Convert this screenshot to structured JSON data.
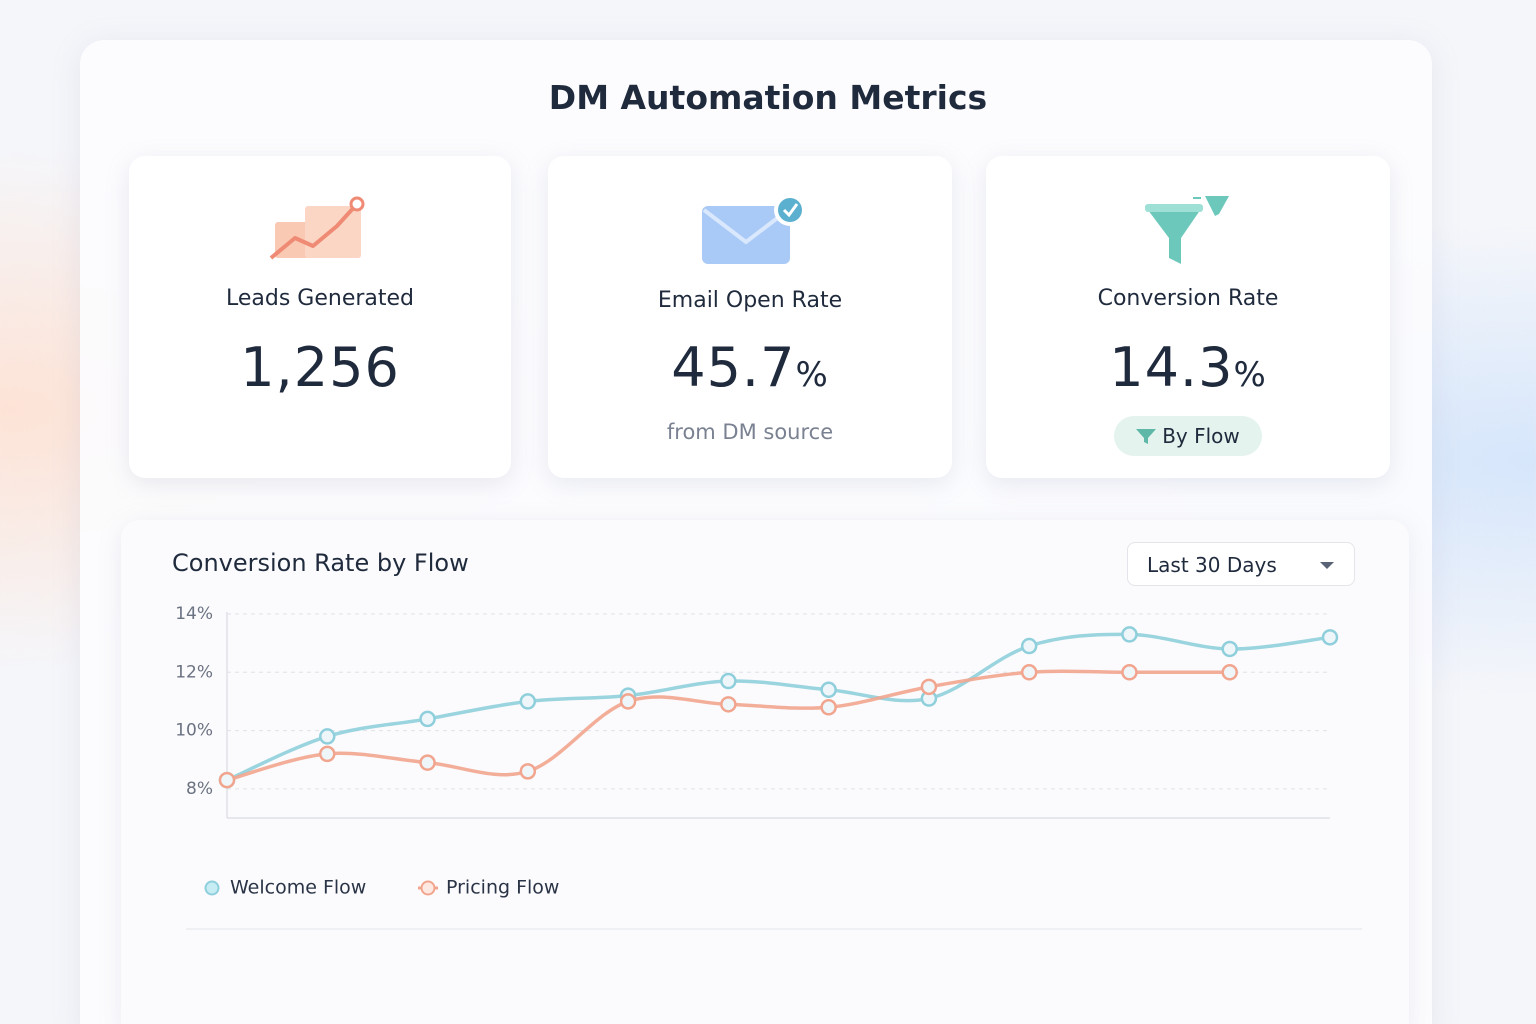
{
  "header": {
    "title": "DM Automation Metrics"
  },
  "cards": [
    {
      "label": "Leads Generated",
      "value": "1,256"
    },
    {
      "label": "Email Open Rate",
      "value": "45.7",
      "unit": "%",
      "note": "from DM source"
    },
    {
      "label": "Conversion Rate",
      "value": "14.3",
      "unit": "%",
      "badge": "By Flow"
    }
  ],
  "controls": {
    "range": "Last 30 Days"
  },
  "chart_data": {
    "type": "line",
    "title": "Conversion Rate by Flow",
    "categories": [
      null,
      null,
      null,
      null,
      null,
      null,
      null,
      null,
      null,
      null,
      null,
      null
    ],
    "series": [
      {
        "name": "Welcome Flow",
        "color": "#8fcfdc",
        "values": [
          8.3,
          9.8,
          10.4,
          11.0,
          11.2,
          11.7,
          11.4,
          11.1,
          12.9,
          13.3,
          12.8,
          13.2
        ]
      },
      {
        "name": "Pricing Flow",
        "color": "#f2a58e",
        "values": [
          8.3,
          9.2,
          8.9,
          8.6,
          11.0,
          10.9,
          10.8,
          11.5,
          12.0,
          12.0,
          12.0,
          null
        ]
      }
    ],
    "ylim": [
      7,
      14
    ],
    "yticks": [
      {
        "value": 8,
        "label": "8%"
      },
      {
        "value": 10,
        "label": "10%"
      },
      {
        "value": 12,
        "label": "12%"
      },
      {
        "value": 14,
        "label": "14%"
      }
    ],
    "grid": true
  }
}
